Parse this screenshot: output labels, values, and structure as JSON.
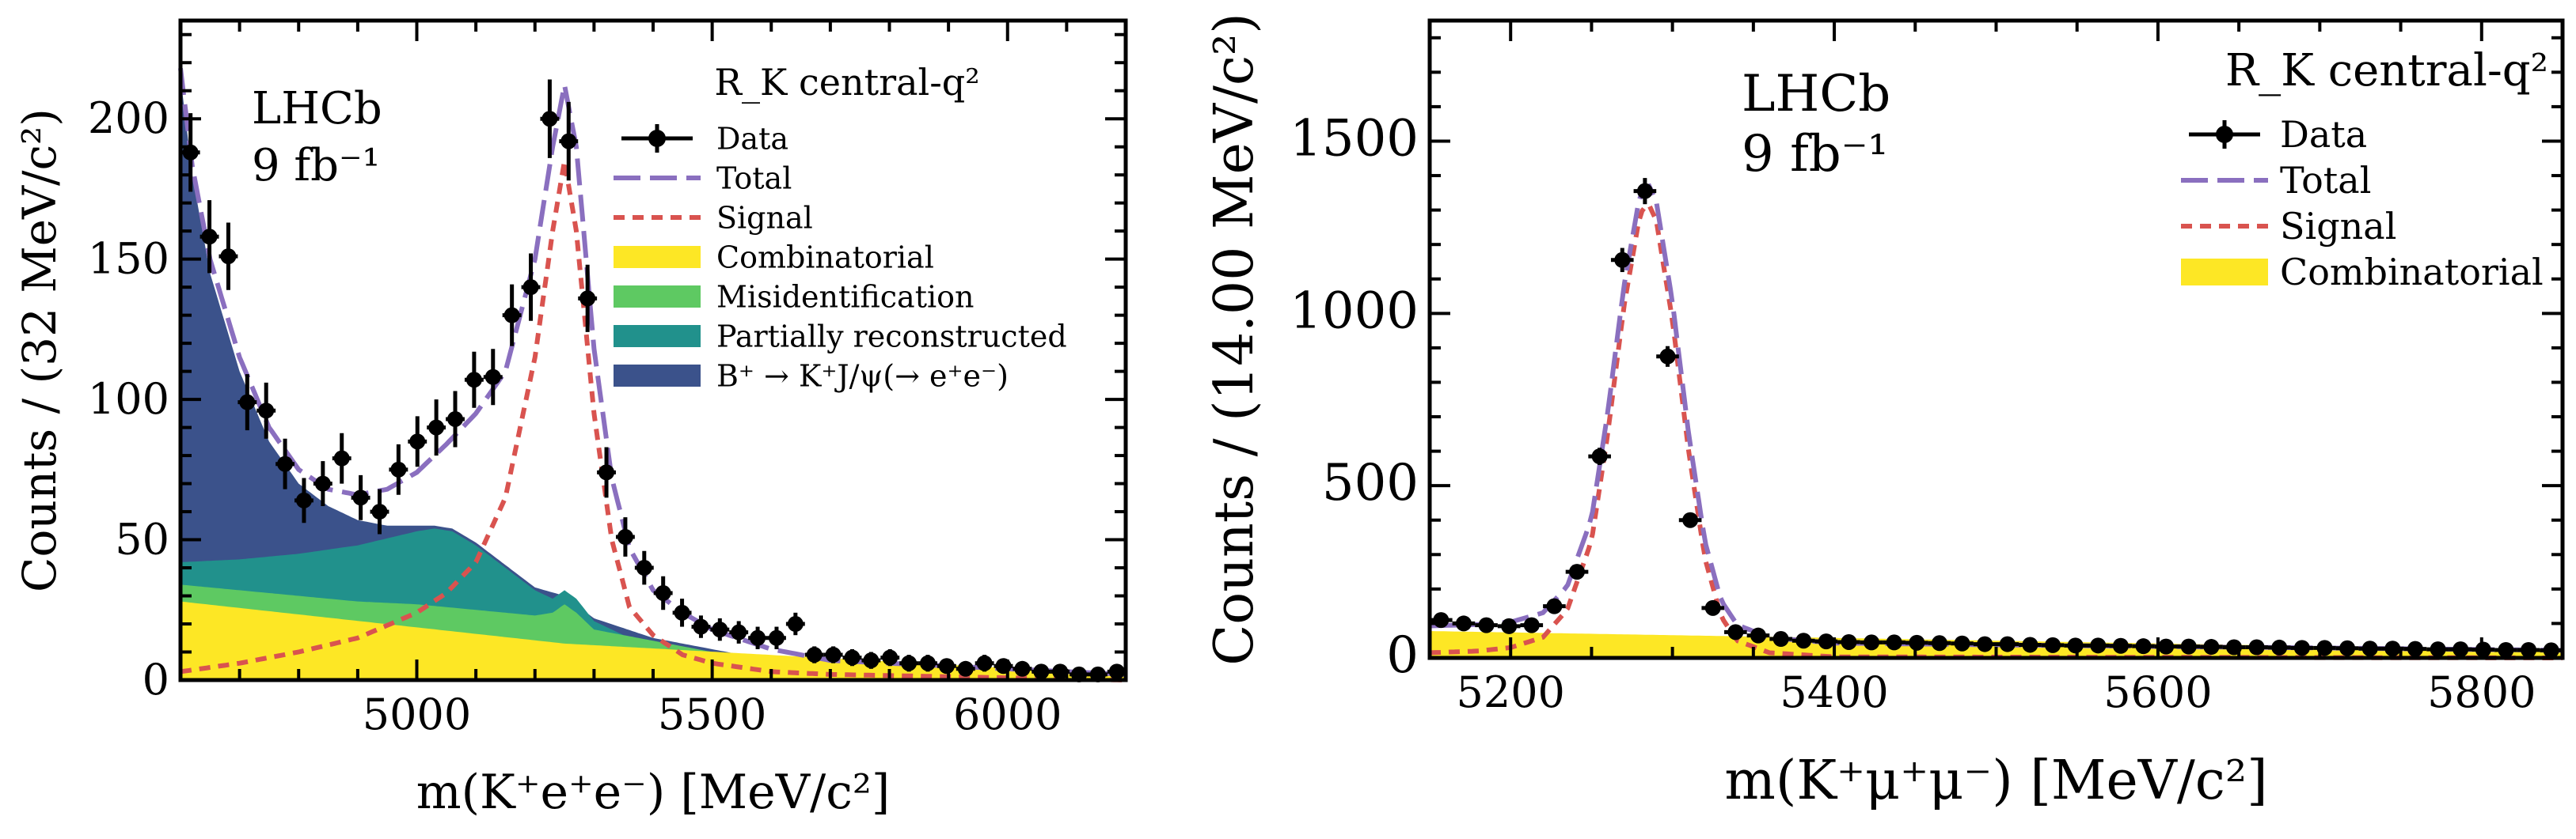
{
  "chart_data": [
    {
      "type": "line",
      "panel": "left",
      "title": "",
      "experiment_label": "LHCb",
      "luminosity_label": "9 fb⁻¹",
      "legend_title": "R_K central-q²",
      "xlabel": "m(K⁺e⁺e⁻) [MeV/c²]",
      "ylabel": "Counts / (32 MeV/c²)",
      "xlim": [
        4600,
        6200
      ],
      "ylim": [
        0,
        235
      ],
      "xticks": [
        5000,
        5500,
        6000
      ],
      "yticks": [
        0,
        50,
        100,
        150,
        200
      ],
      "legend_position": "top-right",
      "legend": [
        {
          "key": "data",
          "label": "Data"
        },
        {
          "key": "total",
          "label": "Total"
        },
        {
          "key": "signal",
          "label": "Signal"
        },
        {
          "key": "comb",
          "label": "Combinatorial"
        },
        {
          "key": "misid",
          "label": "Misidentification"
        },
        {
          "key": "partreco",
          "label": "Partially reconstructed"
        },
        {
          "key": "jpsi",
          "label": "B⁺ → K⁺J/ψ(→ e⁺e⁻)"
        }
      ],
      "colors": {
        "comb": "#fde725",
        "misid": "#5ec962",
        "partreco": "#21918c",
        "jpsi": "#3b528b",
        "total": "#8a6fbf",
        "signal": "#d9534f"
      },
      "x": [
        4617,
        4649,
        4681,
        4713,
        4745,
        4777,
        4809,
        4841,
        4873,
        4905,
        4937,
        4969,
        5001,
        5033,
        5065,
        5097,
        5129,
        5161,
        5193,
        5225,
        5257,
        5289,
        5321,
        5353,
        5385,
        5417,
        5449,
        5481,
        5513,
        5545,
        5577,
        5609,
        5641,
        5673,
        5705,
        5737,
        5769,
        5801,
        5833,
        5865,
        5897,
        5929,
        5961,
        5993,
        6025,
        6057,
        6089,
        6121,
        6153,
        6185
      ],
      "series": [
        {
          "name": "Data",
          "values": [
            188,
            158,
            151,
            99,
            96,
            77,
            64,
            70,
            79,
            65,
            60,
            75,
            85,
            90,
            93,
            107,
            108,
            130,
            140,
            200,
            192,
            136,
            74,
            51,
            40,
            31,
            24,
            19,
            18,
            17,
            15,
            15,
            20,
            9,
            9,
            8,
            7,
            8,
            6,
            6,
            5,
            4,
            6,
            5,
            4,
            3,
            3,
            2,
            2,
            3
          ],
          "errors": [
            14,
            13,
            12,
            10,
            10,
            9,
            8,
            8,
            9,
            8,
            8,
            9,
            9,
            10,
            10,
            10,
            10,
            11,
            12,
            14,
            14,
            12,
            9,
            7,
            6,
            6,
            5,
            4,
            4,
            4,
            4,
            4,
            4,
            3,
            3,
            3,
            3,
            3,
            3,
            3,
            2,
            2,
            3,
            2,
            2,
            2,
            2,
            2,
            2,
            2
          ]
        },
        {
          "name": "Combinatorial",
          "x": [
            4600,
            5250,
            6200
          ],
          "values": [
            28,
            13,
            2
          ]
        },
        {
          "name": "Misidentification",
          "x": [
            4600,
            4700,
            4800,
            4900,
            5000,
            5100,
            5150,
            5200,
            5230,
            5250,
            5270,
            5300,
            5400,
            5500,
            5600,
            5700,
            6200
          ],
          "values": [
            34,
            32,
            30,
            28,
            27,
            25,
            24,
            23,
            24,
            27,
            24,
            18,
            14,
            10,
            7,
            4,
            2
          ]
        },
        {
          "name": "Partially reconstructed",
          "x": [
            4600,
            4700,
            4800,
            4900,
            5000,
            5030,
            5060,
            5100,
            5150,
            5200,
            5230,
            5250,
            5270,
            5300,
            5350,
            5400,
            5500,
            5600,
            5700,
            6200
          ],
          "values": [
            42,
            43,
            45,
            48,
            53,
            54,
            53,
            48,
            40,
            32,
            29,
            32,
            29,
            21,
            16,
            14,
            10,
            7,
            4,
            2
          ]
        },
        {
          "name": "B+ to K+ J/psi(to e+e-)",
          "x": [
            4600,
            4620,
            4650,
            4700,
            4750,
            4800,
            4850,
            4900,
            4950,
            5000,
            5030,
            5060,
            5100,
            5150,
            5200,
            5250,
            5300,
            5400,
            5500,
            5600,
            5700,
            6200
          ],
          "values": [
            215,
            180,
            145,
            110,
            85,
            70,
            62,
            57,
            55,
            55,
            55,
            54,
            49,
            41,
            33,
            30,
            22,
            15,
            11,
            7,
            4,
            2
          ]
        },
        {
          "name": "Signal",
          "x": [
            4600,
            4700,
            4800,
            4900,
            5000,
            5050,
            5100,
            5150,
            5200,
            5230,
            5250,
            5270,
            5300,
            5330,
            5360,
            5400,
            5450,
            5500,
            5600,
            5700,
            6200
          ],
          "values": [
            3,
            6,
            10,
            15,
            24,
            31,
            42,
            65,
            115,
            160,
            185,
            160,
            95,
            50,
            26,
            16,
            9,
            6,
            3,
            2,
            0
          ]
        },
        {
          "name": "Total",
          "x": [
            4600,
            4620,
            4650,
            4700,
            4750,
            4800,
            4850,
            4900,
            4950,
            5000,
            5050,
            5100,
            5150,
            5200,
            5230,
            5250,
            5270,
            5300,
            5330,
            5360,
            5400,
            5450,
            5500,
            5600,
            5700,
            6200
          ],
          "values": [
            218,
            183,
            150,
            115,
            90,
            75,
            68,
            66,
            68,
            74,
            84,
            95,
            110,
            150,
            190,
            212,
            190,
            118,
            72,
            47,
            32,
            24,
            18,
            11,
            7,
            2
          ]
        }
      ]
    },
    {
      "type": "line",
      "panel": "right",
      "title": "",
      "experiment_label": "LHCb",
      "luminosity_label": "9 fb⁻¹",
      "legend_title": "R_K central-q²",
      "xlabel": "m(K⁺μ⁺μ⁻) [MeV/c²]",
      "ylabel": "Counts / (14.00 MeV/c²)",
      "xlim": [
        5150,
        5850
      ],
      "ylim": [
        0,
        1850
      ],
      "xticks": [
        5200,
        5400,
        5600,
        5800
      ],
      "yticks": [
        0,
        500,
        1000,
        1500
      ],
      "legend_position": "top-right",
      "legend": [
        {
          "key": "data",
          "label": "Data"
        },
        {
          "key": "total",
          "label": "Total"
        },
        {
          "key": "signal",
          "label": "Signal"
        },
        {
          "key": "comb",
          "label": "Combinatorial"
        }
      ],
      "colors": {
        "comb": "#fde725",
        "total": "#8a6fbf",
        "signal": "#d9534f"
      },
      "x": [
        5157,
        5171,
        5185,
        5199,
        5213,
        5227,
        5241,
        5255,
        5269,
        5283,
        5297,
        5311,
        5325,
        5339,
        5353,
        5367,
        5381,
        5395,
        5409,
        5423,
        5437,
        5451,
        5465,
        5479,
        5493,
        5507,
        5521,
        5535,
        5549,
        5563,
        5577,
        5591,
        5605,
        5619,
        5633,
        5647,
        5661,
        5675,
        5689,
        5703,
        5717,
        5731,
        5745,
        5759,
        5773,
        5787,
        5801,
        5815,
        5829,
        5843
      ],
      "series": [
        {
          "name": "Data",
          "values": [
            110,
            100,
            95,
            92,
            95,
            150,
            250,
            585,
            1155,
            1355,
            875,
            400,
            145,
            75,
            65,
            55,
            50,
            48,
            46,
            45,
            45,
            44,
            43,
            42,
            40,
            40,
            38,
            37,
            36,
            36,
            35,
            34,
            33,
            33,
            32,
            31,
            31,
            30,
            29,
            29,
            28,
            27,
            27,
            26,
            25,
            25,
            24,
            23,
            23,
            22
          ],
          "errors": [
            12,
            11,
            11,
            11,
            11,
            13,
            16,
            25,
            35,
            38,
            30,
            20,
            12,
            9,
            8,
            8,
            7,
            7,
            7,
            7,
            7,
            7,
            7,
            7,
            7,
            7,
            6,
            6,
            6,
            6,
            6,
            6,
            6,
            6,
            6,
            6,
            6,
            6,
            6,
            6,
            6,
            6,
            6,
            6,
            6,
            6,
            6,
            6,
            6,
            6
          ]
        },
        {
          "name": "Combinatorial",
          "x": [
            5150,
            5850
          ],
          "values": [
            78,
            22
          ]
        },
        {
          "name": "Signal",
          "x": [
            5150,
            5180,
            5200,
            5220,
            5235,
            5250,
            5260,
            5270,
            5280,
            5285,
            5290,
            5300,
            5310,
            5320,
            5330,
            5340,
            5360,
            5400,
            5850
          ],
          "values": [
            15,
            20,
            30,
            60,
            140,
            340,
            650,
            1020,
            1290,
            1320,
            1270,
            980,
            600,
            290,
            120,
            50,
            15,
            3,
            0
          ]
        },
        {
          "name": "Total",
          "x": [
            5150,
            5180,
            5200,
            5220,
            5235,
            5250,
            5260,
            5270,
            5280,
            5285,
            5290,
            5300,
            5310,
            5320,
            5330,
            5340,
            5360,
            5400,
            5500,
            5600,
            5700,
            5850
          ],
          "values": [
            93,
            97,
            104,
            131,
            208,
            405,
            712,
            1079,
            1347,
            1376,
            1325,
            1033,
            651,
            339,
            167,
            96,
            59,
            43,
            38,
            33,
            29,
            22
          ]
        }
      ]
    }
  ]
}
